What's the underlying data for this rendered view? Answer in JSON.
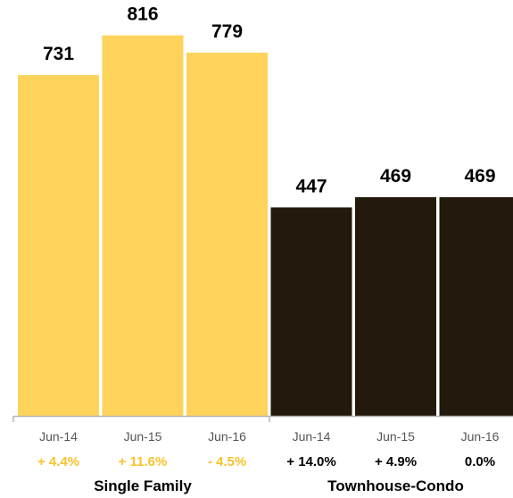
{
  "chart_data": {
    "type": "bar",
    "title": "",
    "xlabel": "",
    "ylabel": "",
    "ylim": [
      0,
      850
    ],
    "grid": false,
    "legend": "none",
    "groups": [
      {
        "name": "Single Family",
        "color": "#FDD35B",
        "change_color": "#F9C22E",
        "categories": [
          "Jun-14",
          "Jun-15",
          "Jun-16"
        ],
        "values": [
          731,
          816,
          779
        ],
        "changes": [
          "+ 4.4%",
          "+ 11.6%",
          "- 4.5%"
        ]
      },
      {
        "name": "Townhouse-Condo",
        "color": "#231A0D",
        "change_color": "#000000",
        "categories": [
          "Jun-14",
          "Jun-15",
          "Jun-16"
        ],
        "values": [
          447,
          469,
          469
        ],
        "changes": [
          "+ 14.0%",
          "+ 4.9%",
          "0.0%"
        ]
      }
    ]
  }
}
